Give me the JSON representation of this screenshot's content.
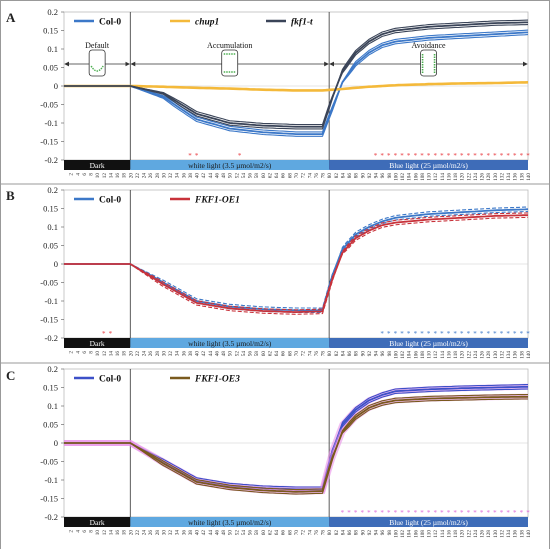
{
  "chart_data": [
    {
      "type": "line",
      "panel_label": "A",
      "ylim": [
        -0.2,
        0.2
      ],
      "yticks": [
        0.2,
        0.15,
        0.1,
        0.05,
        0,
        -0.05,
        -0.1,
        -0.15,
        -0.2
      ],
      "ytick_labels": [
        "0.2",
        "0.15",
        "0.1",
        "0.05",
        "0",
        "-0.05",
        "-0.1",
        "-0.15",
        "-0.2"
      ],
      "x": [
        0,
        10,
        20,
        30,
        40,
        50,
        60,
        70,
        78,
        81,
        84,
        88,
        92,
        96,
        100,
        110,
        120,
        130,
        140
      ],
      "series": [
        {
          "name": "Col-0",
          "values": [
            0,
            0,
            0,
            -0.03,
            -0.09,
            -0.115,
            -0.125,
            -0.13,
            -0.13,
            -0.06,
            0.01,
            0.06,
            0.09,
            0.11,
            0.12,
            0.13,
            0.135,
            0.14,
            0.145
          ]
        },
        {
          "name": "chup1",
          "values": [
            0,
            0,
            0,
            -0.002,
            -0.005,
            -0.007,
            -0.01,
            -0.012,
            -0.012,
            -0.01,
            -0.008,
            -0.005,
            -0.002,
            0,
            0.002,
            0.005,
            0.007,
            0.008,
            0.01
          ]
        },
        {
          "name": "fkf1-t",
          "values": [
            0,
            0,
            0,
            -0.02,
            -0.075,
            -0.1,
            -0.107,
            -0.11,
            -0.11,
            -0.03,
            0.04,
            0.09,
            0.12,
            0.14,
            0.15,
            0.16,
            0.165,
            0.17,
            0.172
          ]
        }
      ],
      "legend": {
        "position": "top-left",
        "entries": [
          "Col-0",
          "chup1",
          "fkf1-t"
        ]
      },
      "phases": [
        "Default",
        "Accumulation",
        "Avoidance"
      ],
      "light_bars": [
        "Dark",
        "white light (3.5 µmol/m2/s)",
        "Blue light (25 µmol/m2/s)"
      ],
      "x_tick_labels": [
        "2",
        "4",
        "6",
        "8",
        "10",
        "12",
        "14",
        "16",
        "18",
        "20",
        "22",
        "24",
        "26",
        "28",
        "30",
        "32",
        "34",
        "36",
        "38",
        "40",
        "42",
        "44",
        "46",
        "48",
        "50",
        "52",
        "54",
        "56",
        "58",
        "60",
        "62",
        "64",
        "66",
        "68",
        "70",
        "72",
        "74",
        "76",
        "78",
        "80",
        "82",
        "84",
        "86",
        "88",
        "90",
        "92",
        "94",
        "96",
        "98",
        "100",
        "102",
        "104",
        "106",
        "108",
        "110",
        "112",
        "114",
        "116",
        "118",
        "120",
        "122",
        "124",
        "126",
        "128",
        "130",
        "132",
        "134",
        "136",
        "138",
        "140"
      ],
      "significance_x": [
        38,
        40,
        53,
        94,
        96,
        98,
        100,
        102,
        104,
        106,
        108,
        110,
        112,
        114,
        116,
        118,
        120,
        122,
        124,
        126,
        128,
        130,
        132,
        134,
        136,
        138,
        140
      ],
      "significance_color": "#e8383d",
      "colors": {
        "Col-0": "#3c78c8",
        "chup1": "#f4b93a",
        "fkf1-t": "#3a4458"
      }
    },
    {
      "type": "line",
      "panel_label": "B",
      "ylim": [
        -0.2,
        0.2
      ],
      "yticks": [
        0.2,
        0.15,
        0.1,
        0.05,
        0,
        -0.05,
        -0.1,
        -0.15,
        -0.2
      ],
      "ytick_labels": [
        "0.2",
        "0.15",
        "0.1",
        "0.05",
        "0",
        "-0.05",
        "-0.1",
        "-0.15",
        "-0.2"
      ],
      "x": [
        0,
        10,
        20,
        30,
        40,
        50,
        60,
        70,
        78,
        81,
        84,
        88,
        92,
        96,
        100,
        110,
        120,
        130,
        140
      ],
      "series": [
        {
          "name": "Col-0",
          "values": [
            0,
            0,
            0,
            -0.05,
            -0.1,
            -0.115,
            -0.122,
            -0.125,
            -0.125,
            -0.03,
            0.04,
            0.08,
            0.1,
            0.115,
            0.125,
            0.135,
            0.14,
            0.145,
            0.148
          ]
        },
        {
          "name": "FKF1-OE1",
          "values": [
            0,
            0,
            0,
            -0.055,
            -0.105,
            -0.12,
            -0.127,
            -0.13,
            -0.128,
            -0.04,
            0.03,
            0.07,
            0.09,
            0.105,
            0.112,
            0.12,
            0.125,
            0.13,
            0.132
          ]
        }
      ],
      "legend": {
        "position": "top-left",
        "entries": [
          "Col-0",
          "FKF1-OE1"
        ]
      },
      "light_bars": [
        "Dark",
        "white light (3.5 µmol/m2/s)",
        "Blue light (25 µmol/m2/s)"
      ],
      "x_tick_labels": [
        "2",
        "4",
        "6",
        "8",
        "10",
        "12",
        "14",
        "16",
        "18",
        "20",
        "22",
        "24",
        "26",
        "28",
        "30",
        "32",
        "34",
        "36",
        "38",
        "40",
        "42",
        "44",
        "46",
        "48",
        "50",
        "52",
        "54",
        "56",
        "58",
        "60",
        "62",
        "64",
        "66",
        "68",
        "70",
        "72",
        "74",
        "76",
        "78",
        "80",
        "82",
        "84",
        "86",
        "88",
        "90",
        "92",
        "94",
        "96",
        "98",
        "100",
        "102",
        "104",
        "106",
        "108",
        "110",
        "112",
        "114",
        "116",
        "118",
        "120",
        "122",
        "124",
        "126",
        "128",
        "130",
        "132",
        "134",
        "136",
        "138",
        "140"
      ],
      "significance_x": [
        12,
        14
      ],
      "significance_color": "#e8383d",
      "significance2_x": [
        96,
        98,
        100,
        102,
        104,
        106,
        108,
        110,
        112,
        114,
        116,
        118,
        120,
        122,
        124,
        126,
        128,
        130,
        132,
        134,
        136,
        138,
        140
      ],
      "significance2_color": "#3c78c8",
      "colors": {
        "Col-0": "#3c78c8",
        "FKF1-OE1": "#c8323a"
      }
    },
    {
      "type": "line",
      "panel_label": "C",
      "ylim": [
        -0.2,
        0.2
      ],
      "yticks": [
        0.2,
        0.15,
        0.1,
        0.05,
        0,
        -0.05,
        -0.1,
        -0.15,
        -0.2
      ],
      "ytick_labels": [
        "0.2",
        "0.15",
        "0.1",
        "0.05",
        "0",
        "-0.05",
        "-0.1",
        "-0.15",
        "-0.2"
      ],
      "x": [
        0,
        10,
        20,
        30,
        40,
        50,
        60,
        70,
        78,
        81,
        84,
        88,
        92,
        96,
        100,
        110,
        120,
        130,
        140
      ],
      "series": [
        {
          "name": "Col-0",
          "values": [
            0,
            0,
            0,
            -0.05,
            -0.1,
            -0.115,
            -0.122,
            -0.125,
            -0.125,
            -0.02,
            0.05,
            0.09,
            0.115,
            0.13,
            0.14,
            0.145,
            0.148,
            0.15,
            0.152
          ]
        },
        {
          "name": "FKF1-OE3",
          "values": [
            0,
            0,
            0,
            -0.055,
            -0.105,
            -0.12,
            -0.128,
            -0.132,
            -0.13,
            -0.04,
            0.03,
            0.07,
            0.095,
            0.108,
            0.115,
            0.12,
            0.122,
            0.124,
            0.125
          ]
        }
      ],
      "legend": {
        "position": "top-left",
        "entries": [
          "Col-0",
          "FKF1-OE3"
        ]
      },
      "light_bars": [
        "Dark",
        "white light (3.5 µmol/m2/s)",
        "Blue light (25 µmol/m2/s)"
      ],
      "x_tick_labels": [
        "2",
        "4",
        "6",
        "8",
        "10",
        "12",
        "14",
        "16",
        "18",
        "20",
        "22",
        "24",
        "26",
        "28",
        "30",
        "32",
        "34",
        "36",
        "38",
        "40",
        "42",
        "44",
        "46",
        "48",
        "50",
        "52",
        "54",
        "56",
        "58",
        "60",
        "62",
        "64",
        "66",
        "68",
        "70",
        "72",
        "74",
        "76",
        "78",
        "80",
        "82",
        "84",
        "86",
        "88",
        "90",
        "92",
        "94",
        "96",
        "98",
        "100",
        "102",
        "104",
        "106",
        "108",
        "110",
        "112",
        "114",
        "116",
        "118",
        "120",
        "122",
        "124",
        "126",
        "128",
        "130",
        "132",
        "134",
        "136",
        "138",
        "140"
      ],
      "significance_x": [
        84,
        86,
        88,
        90,
        92,
        94,
        96,
        98,
        100,
        102,
        104,
        106,
        108,
        110,
        112,
        114,
        116,
        118,
        120,
        122,
        124,
        126,
        128,
        130,
        132,
        134,
        136,
        138,
        140
      ],
      "significance_color": "#e06ad8",
      "colors": {
        "Col-0": "#3c50c8",
        "FKF1-OE3": "#7a5a1e",
        "band": "#e889e8"
      }
    }
  ]
}
